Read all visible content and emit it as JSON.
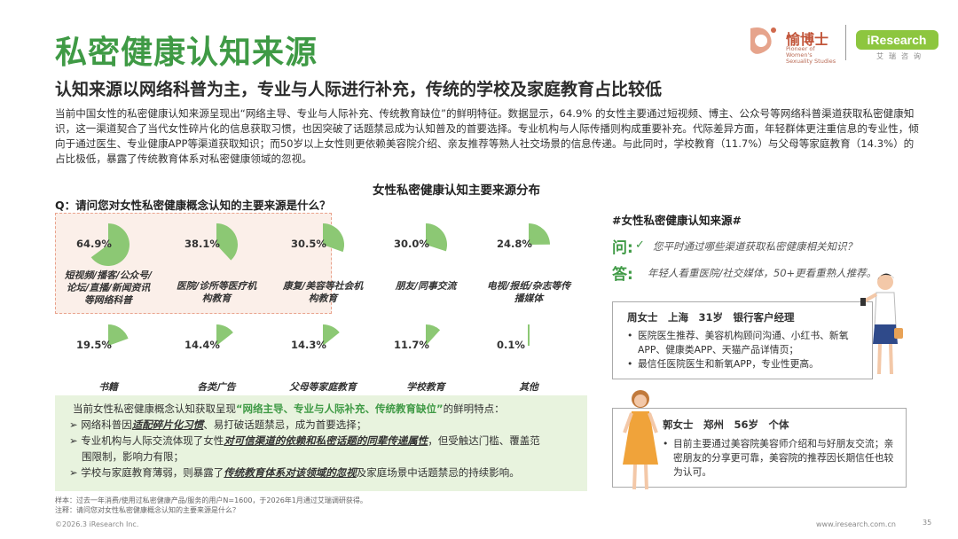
{
  "header": {
    "title": "私密健康认知来源",
    "subtitle": "认知来源以网络科普为主，专业与人际进行补充，传统的学校及家庭教育占比较低",
    "intro": "当前中国女性的私密健康认知来源呈现出“网络主导、专业与人际补充、传统教育缺位”的鲜明特征。数据显示，64.9% 的女性主要通过短视频、博主、公众号等网络科普渠道获取私密健康知识，这一渠道契合了当代女性碎片化的信息获取习惯，也因突破了话题禁忌成为认知普及的首要选择。专业机构与人际传播则构成重要补充。代际差异方面，年轻群体更注重信息的专业性，倾向于通过医生、专业健康APP等渠道获取知识；而50岁以上女性则更依赖美容院介绍、亲友推荐等熟人社交场景的信息传递。与此同时，学校教育（11.7%）与父母等家庭教育（14.3%）的占比极低，暴露了传统教育体系对私密健康领域的忽视。"
  },
  "logo": {
    "brand_cn": "愉博士",
    "brand_en": "Pioneer of Women's Sexuality Studies",
    "ir_name": "iResearch",
    "ir_cn": "艾瑞咨询"
  },
  "chart_data": {
    "type": "pie",
    "title": "女性私密健康认知主要来源分布",
    "question": "Q：请问您对女性私密健康概念认知的主要来源是什么？",
    "categories": [
      "短视频/播客/公众号/论坛/直播/新闻资讯等网络科普",
      "医院/诊所等医疗机构教育",
      "康复/美容等社会机构教育",
      "朋友/同事交流",
      "电视/报纸/杂志等传播媒体",
      "书籍",
      "各类广告",
      "父母等家庭教育",
      "学校教育",
      "其他"
    ],
    "values": [
      64.9,
      38.1,
      30.5,
      30.0,
      24.8,
      19.5,
      14.4,
      14.3,
      11.7,
      0.1
    ],
    "labels": [
      "64.9%",
      "38.1%",
      "30.5%",
      "30.0%",
      "24.8%",
      "19.5%",
      "14.4%",
      "14.3%",
      "11.7%",
      "0.1%"
    ],
    "highlighted": [
      0,
      1,
      2
    ],
    "color": "#8cc874"
  },
  "qa": {
    "hashtag": "#女性私密健康认知来源#",
    "q_label": "问:",
    "q_text": "您平时通过哪些渠道获取私密健康相关知识？",
    "a_label": "答:",
    "a_text": "年轻人看重医院/社交媒体，50+更看重熟人推荐。"
  },
  "personas": [
    {
      "header": "周女士　上海　31岁　银行客户经理",
      "items": [
        "医院医生推荐、美容机构顾问沟通、小红书、新氧APP、健康类APP、天猫产品详情页；",
        "最信任医院医生和新氧APP，专业性更高。"
      ]
    },
    {
      "header": "郭女士　郑州　56岁　个体",
      "items": [
        "目前主要通过美容院美容师介绍和与好朋友交流；亲密朋友的分享更可靠，美容院的推荐因长期信任也较为认可。"
      ]
    }
  ],
  "summary": {
    "lead_prefix": "当前女性私密健康概念认知获取呈现",
    "lead_emph": "“网络主导、专业与人际补充、传统教育缺位”",
    "lead_suffix": "的鲜明特点：",
    "b1_a": "网络科普因",
    "b1_emph": "适配碎片化习惯",
    "b1_b": "、易打破话题禁忌，成为首要选择；",
    "b2_a": "专业机构与人际交流体现了女性",
    "b2_emph": "对可信渠道的依赖和私密话题的同辈传递属性",
    "b2_b": "，但受触达门槛、覆盖范",
    "b2_c": "围限制，影响力有限；",
    "b3_a": "学校与家庭教育薄弱，则暴露了",
    "b3_emph": "传统教育体系对该领域的忽视",
    "b3_b": "及家庭场景中话题禁忌的持续影响。"
  },
  "footer": {
    "note1": "样本：过去一年消费/使用过私密健康产品/服务的用户N=1600，于2026年1月通过艾瑞调研获得。",
    "note2": "注释：请问您对女性私密健康概念认知的主要来源是什么？",
    "copyright": "©2026.3 iResearch Inc.",
    "site": "www.iresearch.com.cn",
    "page": "35"
  }
}
